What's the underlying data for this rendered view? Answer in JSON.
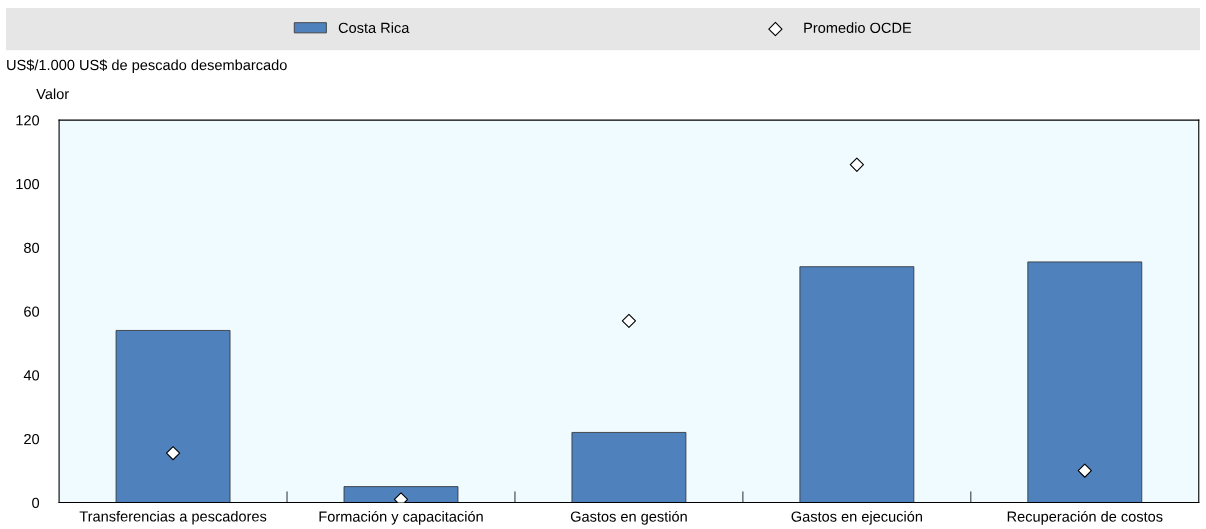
{
  "chart_data": {
    "type": "bar",
    "ylabel": "US$/1.000 US$ de pescado desembarcado",
    "annotations": [
      "Valor"
    ],
    "categories": [
      "Transferencias a pescadores",
      "Formación y capacitación",
      "Gastos en gestión",
      "Gastos en ejecución",
      "Recuperación de costos"
    ],
    "series": [
      {
        "name": "Costa Rica",
        "color": "#4f81bd",
        "values": [
          54,
          5,
          22,
          74,
          75.5
        ]
      },
      {
        "name": "Promedio OCDE",
        "type": "scatter",
        "marker": "diamond",
        "color": "#ffffff",
        "values": [
          15.5,
          1,
          57,
          106,
          10
        ]
      }
    ],
    "ylim": [
      0,
      120
    ],
    "yticks": [
      0,
      20,
      40,
      60,
      80,
      100,
      120
    ],
    "legend": "top",
    "grid": false
  }
}
